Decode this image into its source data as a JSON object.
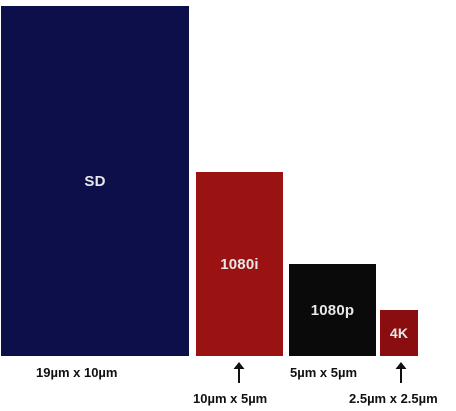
{
  "chart_data": {
    "type": "bar",
    "categories": [
      "SD",
      "1080i",
      "1080p",
      "4K"
    ],
    "series": [
      {
        "values": [
          19,
          10,
          5,
          2.5
        ]
      }
    ],
    "secondary_values": [
      10,
      5,
      5,
      2.5
    ],
    "bar_labels": [
      "SD",
      "1080i",
      "1080p",
      "4K"
    ],
    "size_captions": [
      "19µm x 10µm",
      "10µm x 5µm",
      "5µm x 5µm",
      "2.5µm x 2.5µm"
    ],
    "colors": [
      "#0d0f4a",
      "#9a1212",
      "#0a0a0a",
      "#8a0e10"
    ],
    "title": "",
    "xlabel": "",
    "ylabel": "",
    "grid": false,
    "legend": "none"
  }
}
